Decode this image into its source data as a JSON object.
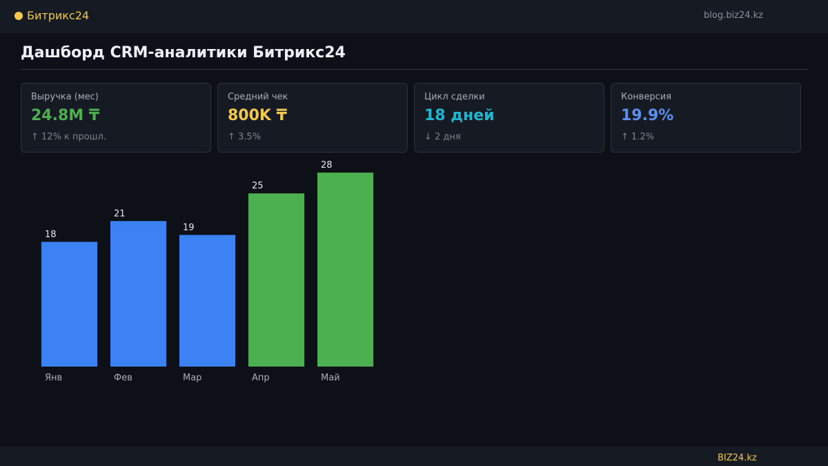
{
  "header": {
    "brand": "Битрикс24",
    "site": "blog.biz24.kz"
  },
  "page": {
    "title": "Дашборд CRM-аналитики Битрикс24"
  },
  "kpis": [
    {
      "label": "Выручка (мес)",
      "value": "24.8M ₸",
      "delta": "↑ 12% к прошл.",
      "color": "#4caf50"
    },
    {
      "label": "Средний чек",
      "value": "800K ₸",
      "delta": "↑ 3.5%",
      "color": "#f2c94c"
    },
    {
      "label": "Цикл сделки",
      "value": "18 дней",
      "delta": "↓ 2 дня",
      "color": "#1fb6d1"
    },
    {
      "label": "Конверсия",
      "value": "19.9%",
      "delta": "↑ 1.2%",
      "color": "#5b8ff0"
    }
  ],
  "chart_data": {
    "type": "bar",
    "categories": [
      "Янв",
      "Фев",
      "Мар",
      "Апр",
      "Май"
    ],
    "values": [
      18,
      21,
      19,
      25,
      28
    ],
    "bar_colors": [
      "#3d82f5",
      "#3d82f5",
      "#3d82f5",
      "#4caf50",
      "#4caf50"
    ],
    "ylim": [
      0,
      28
    ],
    "grid": false,
    "legend": "none"
  },
  "footer": {
    "brand": "BIZ24.kz"
  }
}
